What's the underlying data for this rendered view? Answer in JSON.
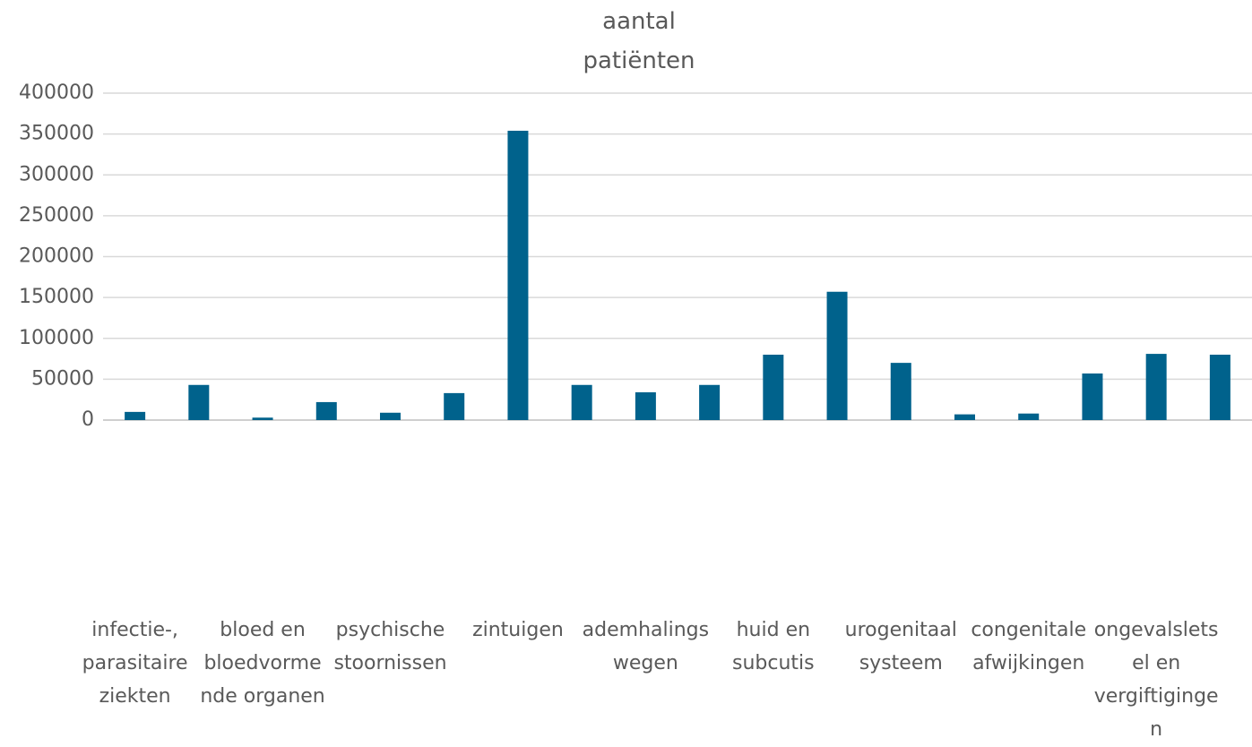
{
  "chart_data": {
    "type": "bar",
    "title": "aantal patiënten",
    "categories": [
      "infectie-, parasitaire ziekten",
      null,
      "bloed en bloedvormende organen",
      null,
      "psychische stoornissen",
      null,
      "zintuigen",
      null,
      "ademhalingswegen",
      null,
      "huid en subcutis",
      null,
      "urogenitaal systeem",
      null,
      "congenitale afwijkingen",
      null,
      "ongevalsletsel en vergiftigingen",
      null
    ],
    "values": [
      10000,
      43000,
      3000,
      22000,
      9000,
      33000,
      354000,
      43000,
      34000,
      43000,
      80000,
      157000,
      70000,
      7000,
      8000,
      57000,
      81000,
      80000
    ],
    "color": "#00628c",
    "ylim": [
      0,
      400000
    ],
    "yticks": [
      0,
      50000,
      100000,
      150000,
      200000,
      250000,
      300000,
      350000,
      400000
    ],
    "grid": true
  }
}
